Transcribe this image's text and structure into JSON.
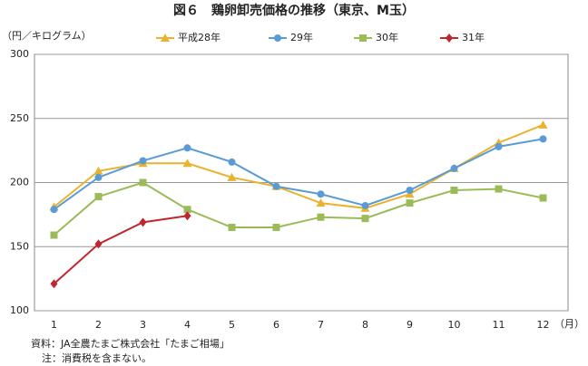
{
  "chart_data": {
    "type": "line",
    "title": "図６　鶏卵卸売価格の推移（東京、M玉）",
    "y_label": "（円／キログラム）",
    "x_label": "（月）",
    "notes": [
      "資料：JA全農たまご株式会社「たまご相場」",
      "注：消費税を含まない。"
    ],
    "categories": [
      "1",
      "2",
      "3",
      "4",
      "5",
      "6",
      "7",
      "8",
      "9",
      "10",
      "11",
      "12"
    ],
    "series": [
      {
        "name": "平成28年",
        "color": "#e9b22f",
        "marker": "triangle",
        "values": [
          181,
          209,
          215,
          215,
          204,
          197,
          184,
          180,
          191,
          211,
          231,
          245
        ]
      },
      {
        "name": "29年",
        "color": "#5b9bd5",
        "marker": "circle",
        "values": [
          179,
          204,
          217,
          227,
          216,
          197,
          191,
          182,
          194,
          211,
          228,
          234
        ]
      },
      {
        "name": "30年",
        "color": "#9bbb59",
        "marker": "square",
        "values": [
          159,
          189,
          200,
          179,
          165,
          165,
          173,
          172,
          184,
          194,
          195,
          188
        ]
      },
      {
        "name": "31年",
        "color": "#c0272d",
        "marker": "diamond",
        "values": [
          121,
          152,
          169,
          174,
          null,
          null,
          null,
          null,
          null,
          null,
          null,
          null
        ]
      }
    ],
    "ylim": [
      100,
      300
    ],
    "yticks": [
      100,
      150,
      200,
      250,
      300
    ],
    "grid": true,
    "legend": "top"
  }
}
